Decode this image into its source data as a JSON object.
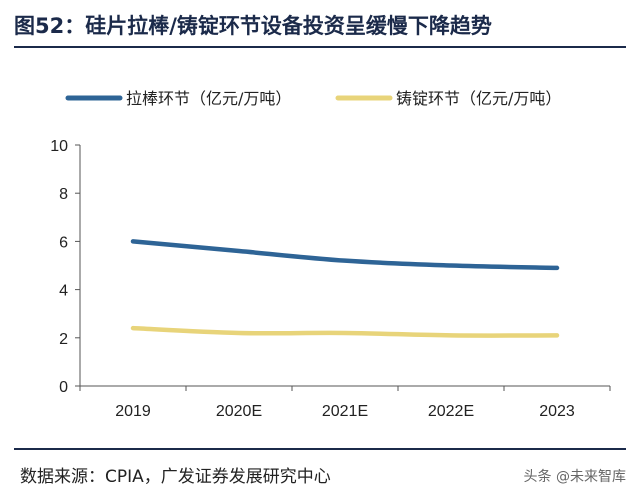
{
  "header": {
    "title": "图52：硅片拉棒/铸锭环节设备投资呈缓慢下降趋势"
  },
  "footer": {
    "source": "数据来源：CPIA，广发证券发展研究中心",
    "watermark": "头条 @未来智库"
  },
  "chart_data": {
    "type": "line",
    "categories": [
      "2019",
      "2020E",
      "2021E",
      "2022E",
      "2023"
    ],
    "series": [
      {
        "name": "拉棒环节（亿元/万吨）",
        "values": [
          6.0,
          5.6,
          5.2,
          5.0,
          4.9
        ],
        "color": "#2e6496"
      },
      {
        "name": "铸锭环节（亿元/万吨）",
        "values": [
          2.4,
          2.2,
          2.2,
          2.1,
          2.1
        ],
        "color": "#e8d47a"
      }
    ],
    "ylim": [
      0,
      10
    ],
    "yticks": [
      0,
      2,
      4,
      6,
      8,
      10
    ],
    "legend_position": "top",
    "grid": false
  }
}
